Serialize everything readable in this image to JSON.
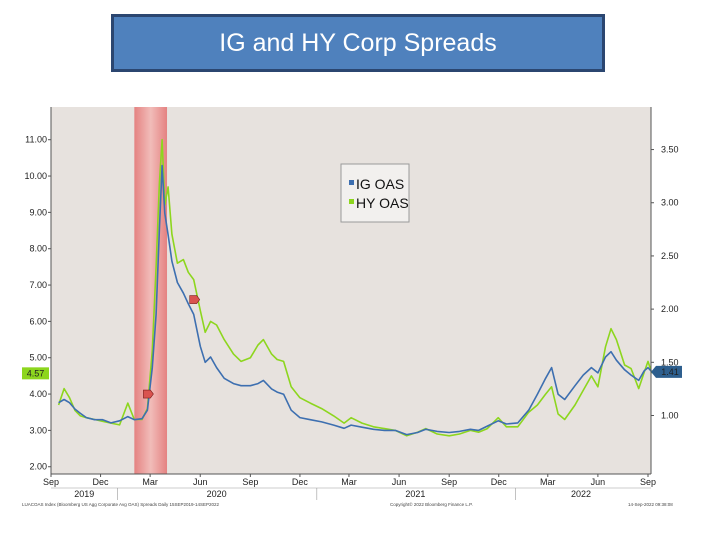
{
  "slide": {
    "title": "IG and HY Corp Spreads"
  },
  "chart_data": {
    "type": "line",
    "legend_placement": "top-center",
    "grid": false,
    "colors": {
      "IG OAS": "#3d6fb0",
      "HY OAS": "#8dd61e",
      "recession": "#ef8f8f",
      "plot_bg": "#e7e2de"
    },
    "x_labels": [
      {
        "month": "Sep",
        "date": "2019-09"
      },
      {
        "month": "Dec",
        "date": "2019-12"
      },
      {
        "month": "Mar",
        "date": "2020-03"
      },
      {
        "month": "Jun",
        "date": "2020-06"
      },
      {
        "month": "Sep",
        "date": "2020-09"
      },
      {
        "month": "Dec",
        "date": "2020-12"
      },
      {
        "month": "Mar",
        "date": "2021-03"
      },
      {
        "month": "Jun",
        "date": "2021-06"
      },
      {
        "month": "Sep",
        "date": "2021-09"
      },
      {
        "month": "Dec",
        "date": "2021-12"
      },
      {
        "month": "Mar",
        "date": "2022-03"
      },
      {
        "month": "Jun",
        "date": "2022-06"
      },
      {
        "month": "Sep",
        "date": "2022-09"
      }
    ],
    "year_labels": [
      {
        "year": "2019",
        "date": "2019-11"
      },
      {
        "year": "2020",
        "date": "2020-07"
      },
      {
        "year": "2021",
        "date": "2021-07"
      },
      {
        "year": "2022",
        "date": "2022-05"
      }
    ],
    "y_left": {
      "ticks": [
        "2.00",
        "3.00",
        "4.00",
        "5.00",
        "6.00",
        "7.00",
        "8.00",
        "9.00",
        "10.00",
        "11.00"
      ],
      "range": [
        1.8,
        11.9
      ]
    },
    "y_right": {
      "ticks": [
        "1.00",
        "1.50",
        "2.00",
        "2.50",
        "3.00",
        "3.50"
      ],
      "range": [
        0.45,
        3.9
      ]
    },
    "shaded_region": {
      "start": "2020-02",
      "end": "2020-04"
    },
    "last_values": {
      "left": "4.57",
      "right": "1.41"
    },
    "series": [
      {
        "name": "HY OAS",
        "axis": "left",
        "points": [
          [
            "2019-09-15",
            3.7
          ],
          [
            "2019-09-25",
            4.15
          ],
          [
            "2019-10-05",
            3.9
          ],
          [
            "2019-10-15",
            3.55
          ],
          [
            "2019-10-25",
            3.4
          ],
          [
            "2019-11-05",
            3.35
          ],
          [
            "2019-11-20",
            3.3
          ],
          [
            "2019-12-05",
            3.25
          ],
          [
            "2019-12-20",
            3.2
          ],
          [
            "2020-01-05",
            3.15
          ],
          [
            "2020-01-20",
            3.75
          ],
          [
            "2020-02-01",
            3.3
          ],
          [
            "2020-02-15",
            3.3
          ],
          [
            "2020-02-25",
            3.6
          ],
          [
            "2020-03-05",
            5.2
          ],
          [
            "2020-03-12",
            7.5
          ],
          [
            "2020-03-18",
            9.8
          ],
          [
            "2020-03-23",
            11.0
          ],
          [
            "2020-03-28",
            9.2
          ],
          [
            "2020-04-03",
            9.7
          ],
          [
            "2020-04-10",
            8.4
          ],
          [
            "2020-04-20",
            7.6
          ],
          [
            "2020-05-01",
            7.7
          ],
          [
            "2020-05-10",
            7.35
          ],
          [
            "2020-05-20",
            7.15
          ],
          [
            "2020-06-01",
            6.3
          ],
          [
            "2020-06-10",
            5.7
          ],
          [
            "2020-06-20",
            6.0
          ],
          [
            "2020-07-01",
            5.9
          ],
          [
            "2020-07-15",
            5.5
          ],
          [
            "2020-08-01",
            5.1
          ],
          [
            "2020-08-15",
            4.9
          ],
          [
            "2020-09-01",
            5.0
          ],
          [
            "2020-09-15",
            5.35
          ],
          [
            "2020-09-25",
            5.5
          ],
          [
            "2020-10-10",
            5.1
          ],
          [
            "2020-10-20",
            4.95
          ],
          [
            "2020-11-01",
            4.9
          ],
          [
            "2020-11-15",
            4.2
          ],
          [
            "2020-12-01",
            3.9
          ],
          [
            "2020-12-20",
            3.75
          ],
          [
            "2021-01-10",
            3.6
          ],
          [
            "2021-02-01",
            3.4
          ],
          [
            "2021-02-20",
            3.2
          ],
          [
            "2021-03-05",
            3.35
          ],
          [
            "2021-03-25",
            3.2
          ],
          [
            "2021-04-15",
            3.1
          ],
          [
            "2021-05-05",
            3.05
          ],
          [
            "2021-05-25",
            3.0
          ],
          [
            "2021-06-15",
            2.85
          ],
          [
            "2021-07-05",
            2.95
          ],
          [
            "2021-07-20",
            3.05
          ],
          [
            "2021-08-10",
            2.9
          ],
          [
            "2021-09-01",
            2.85
          ],
          [
            "2021-09-20",
            2.9
          ],
          [
            "2021-10-10",
            3.0
          ],
          [
            "2021-10-25",
            2.95
          ],
          [
            "2021-11-10",
            3.05
          ],
          [
            "2021-11-30",
            3.35
          ],
          [
            "2021-12-15",
            3.1
          ],
          [
            "2022-01-05",
            3.1
          ],
          [
            "2022-01-25",
            3.5
          ],
          [
            "2022-02-10",
            3.7
          ],
          [
            "2022-02-25",
            4.0
          ],
          [
            "2022-03-08",
            4.2
          ],
          [
            "2022-03-20",
            3.45
          ],
          [
            "2022-04-01",
            3.3
          ],
          [
            "2022-04-20",
            3.7
          ],
          [
            "2022-05-05",
            4.1
          ],
          [
            "2022-05-20",
            4.5
          ],
          [
            "2022-06-01",
            4.2
          ],
          [
            "2022-06-15",
            5.3
          ],
          [
            "2022-06-25",
            5.8
          ],
          [
            "2022-07-05",
            5.5
          ],
          [
            "2022-07-20",
            4.8
          ],
          [
            "2022-08-01",
            4.7
          ],
          [
            "2022-08-15",
            4.15
          ],
          [
            "2022-08-25",
            4.6
          ],
          [
            "2022-09-01",
            4.9
          ],
          [
            "2022-09-08",
            4.57
          ]
        ]
      },
      {
        "name": "IG OAS",
        "axis": "right",
        "points": [
          [
            "2019-09-15",
            1.12
          ],
          [
            "2019-09-25",
            1.15
          ],
          [
            "2019-10-05",
            1.12
          ],
          [
            "2019-10-15",
            1.06
          ],
          [
            "2019-10-25",
            1.02
          ],
          [
            "2019-11-05",
            0.98
          ],
          [
            "2019-11-20",
            0.96
          ],
          [
            "2019-12-05",
            0.96
          ],
          [
            "2019-12-20",
            0.93
          ],
          [
            "2020-01-05",
            0.95
          ],
          [
            "2020-01-20",
            0.99
          ],
          [
            "2020-02-01",
            0.96
          ],
          [
            "2020-02-15",
            0.97
          ],
          [
            "2020-02-25",
            1.05
          ],
          [
            "2020-03-05",
            1.45
          ],
          [
            "2020-03-12",
            1.95
          ],
          [
            "2020-03-18",
            2.75
          ],
          [
            "2020-03-23",
            3.35
          ],
          [
            "2020-03-28",
            2.9
          ],
          [
            "2020-04-03",
            2.7
          ],
          [
            "2020-04-10",
            2.45
          ],
          [
            "2020-04-20",
            2.25
          ],
          [
            "2020-05-01",
            2.15
          ],
          [
            "2020-05-10",
            2.05
          ],
          [
            "2020-05-20",
            1.95
          ],
          [
            "2020-06-01",
            1.65
          ],
          [
            "2020-06-10",
            1.5
          ],
          [
            "2020-06-20",
            1.55
          ],
          [
            "2020-07-01",
            1.45
          ],
          [
            "2020-07-15",
            1.35
          ],
          [
            "2020-08-01",
            1.3
          ],
          [
            "2020-08-15",
            1.28
          ],
          [
            "2020-09-01",
            1.28
          ],
          [
            "2020-09-15",
            1.3
          ],
          [
            "2020-09-25",
            1.33
          ],
          [
            "2020-10-10",
            1.25
          ],
          [
            "2020-10-20",
            1.22
          ],
          [
            "2020-11-01",
            1.2
          ],
          [
            "2020-11-15",
            1.05
          ],
          [
            "2020-12-01",
            0.98
          ],
          [
            "2020-12-20",
            0.96
          ],
          [
            "2021-01-10",
            0.94
          ],
          [
            "2021-02-01",
            0.91
          ],
          [
            "2021-02-20",
            0.88
          ],
          [
            "2021-03-05",
            0.91
          ],
          [
            "2021-03-25",
            0.89
          ],
          [
            "2021-04-15",
            0.87
          ],
          [
            "2021-05-05",
            0.86
          ],
          [
            "2021-05-25",
            0.86
          ],
          [
            "2021-06-15",
            0.82
          ],
          [
            "2021-07-05",
            0.84
          ],
          [
            "2021-07-20",
            0.87
          ],
          [
            "2021-08-10",
            0.85
          ],
          [
            "2021-09-01",
            0.84
          ],
          [
            "2021-09-20",
            0.85
          ],
          [
            "2021-10-10",
            0.87
          ],
          [
            "2021-10-25",
            0.86
          ],
          [
            "2021-11-10",
            0.9
          ],
          [
            "2021-11-30",
            0.95
          ],
          [
            "2021-12-15",
            0.92
          ],
          [
            "2022-01-05",
            0.93
          ],
          [
            "2022-01-25",
            1.05
          ],
          [
            "2022-02-10",
            1.2
          ],
          [
            "2022-02-25",
            1.35
          ],
          [
            "2022-03-08",
            1.45
          ],
          [
            "2022-03-20",
            1.2
          ],
          [
            "2022-04-01",
            1.15
          ],
          [
            "2022-04-20",
            1.28
          ],
          [
            "2022-05-05",
            1.38
          ],
          [
            "2022-05-20",
            1.45
          ],
          [
            "2022-06-01",
            1.4
          ],
          [
            "2022-06-15",
            1.55
          ],
          [
            "2022-06-25",
            1.6
          ],
          [
            "2022-07-05",
            1.52
          ],
          [
            "2022-07-20",
            1.43
          ],
          [
            "2022-08-01",
            1.38
          ],
          [
            "2022-08-15",
            1.33
          ],
          [
            "2022-08-25",
            1.42
          ],
          [
            "2022-09-01",
            1.45
          ],
          [
            "2022-09-08",
            1.41
          ]
        ]
      }
    ],
    "legend": [
      {
        "label": "IG OAS",
        "color": "#3d6fb0"
      },
      {
        "label": "HY OAS",
        "color": "#8dd61e"
      }
    ],
    "footer": {
      "left": "LUACOAS Index (Bloomberg US Agg Corporate Avg OAS) Spreads  Daily 15SEP2019-14SEP2022",
      "center": "Copyright© 2022 Bloomberg Finance L.P.",
      "right": "14-Sep-2022 09:38:08"
    }
  }
}
